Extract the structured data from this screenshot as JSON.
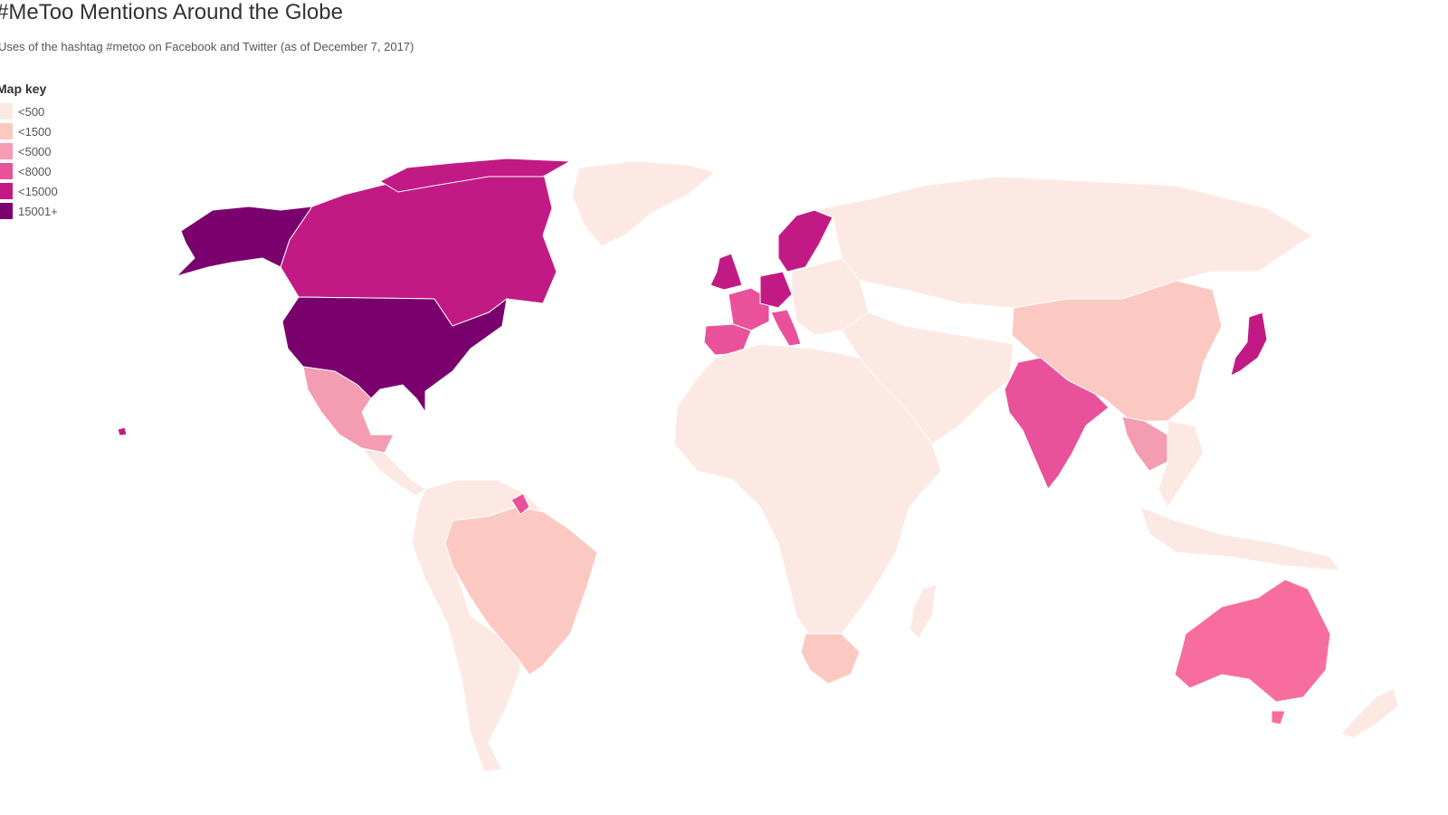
{
  "title": "#MeToo Mentions Around the Globe",
  "subtitle": "Uses of the hashtag #metoo on Facebook and Twitter (as of December 7, 2017)",
  "legend": {
    "title": "Map key",
    "items": [
      {
        "label": "<500",
        "color": "#fde9e4"
      },
      {
        "label": "<1500",
        "color": "#fbc9c2"
      },
      {
        "label": "<5000",
        "color": "#f39cb2"
      },
      {
        "label": "<8000",
        "color": "#e9529b"
      },
      {
        "label": "<15000",
        "color": "#c21a84"
      },
      {
        "label": "15001+",
        "color": "#7a006e"
      }
    ]
  },
  "regions": {
    "alaska": {
      "color": "#7a006e"
    },
    "usa": {
      "color": "#7a006e"
    },
    "canada": {
      "color": "#c21a84"
    },
    "greenland": {
      "color": "#fde9e4"
    },
    "mexico": {
      "color": "#f39cb2"
    },
    "central_america": {
      "color": "#fde9e4"
    },
    "south_america": {
      "color": "#fde9e4"
    },
    "brazil": {
      "color": "#fbc9c2"
    },
    "guyana": {
      "color": "#e9529b"
    },
    "uk": {
      "color": "#c21a84"
    },
    "scandinavia": {
      "color": "#c21a84"
    },
    "france": {
      "color": "#e9529b"
    },
    "spain": {
      "color": "#e9529b"
    },
    "germany": {
      "color": "#c21a84"
    },
    "italy": {
      "color": "#e9529b"
    },
    "eastern_europe": {
      "color": "#fde9e4"
    },
    "russia": {
      "color": "#fde9e4"
    },
    "africa": {
      "color": "#fde9e4"
    },
    "south_africa": {
      "color": "#fbc9c2"
    },
    "madagascar": {
      "color": "#fde9e4"
    },
    "middle_east": {
      "color": "#fde9e4"
    },
    "india": {
      "color": "#e9529b"
    },
    "china": {
      "color": "#fbc9c2"
    },
    "japan": {
      "color": "#c21a84"
    },
    "southeast_asia": {
      "color": "#fde9e4"
    },
    "thailand": {
      "color": "#f39cb2"
    },
    "indonesia": {
      "color": "#fde9e4"
    },
    "australia": {
      "color": "#f76e9e"
    },
    "new_zealand": {
      "color": "#fde9e4"
    },
    "hawaii": {
      "color": "#c21a84"
    }
  }
}
